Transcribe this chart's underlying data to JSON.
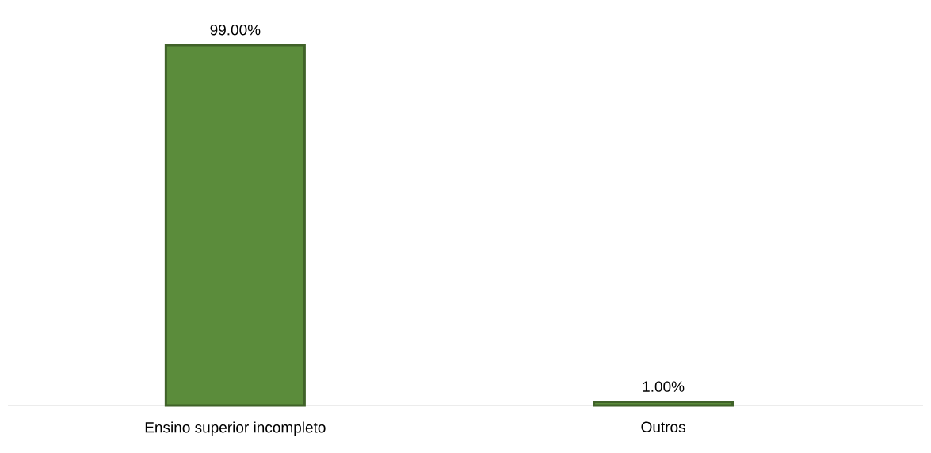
{
  "chart_data": {
    "type": "bar",
    "categories": [
      "Ensino superior incompleto",
      "Outros"
    ],
    "values": [
      99,
      1
    ],
    "value_labels": [
      "99.00%",
      "1.00%"
    ],
    "color": "#5b8c3b"
  }
}
